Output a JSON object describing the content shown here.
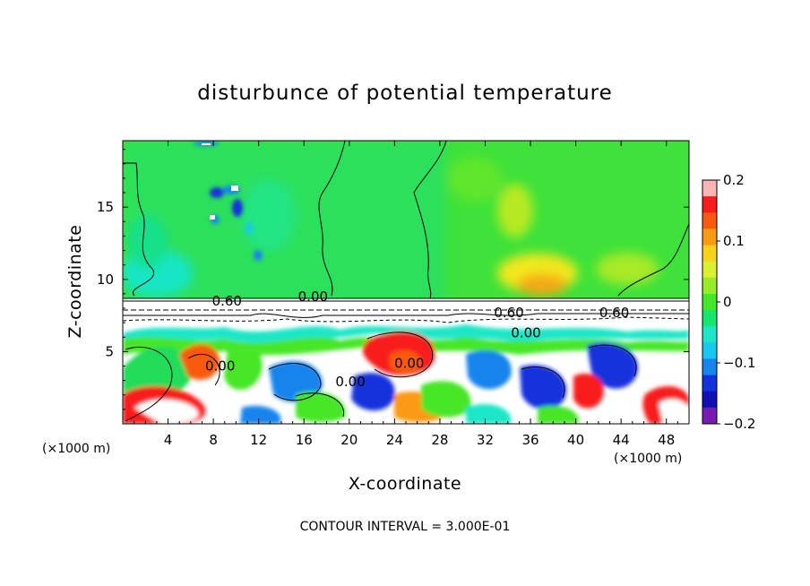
{
  "chart_data": {
    "type": "heatmap",
    "title": "disturbunce of potential temperature",
    "xlabel": "X-coordinate",
    "ylabel": "Z-coordinate",
    "x_unit": "(×1000 m)",
    "y_unit": "(×1000 m)",
    "xlim": [
      0,
      50
    ],
    "ylim": [
      0,
      19.6
    ],
    "x_ticks": [
      4,
      8,
      12,
      16,
      20,
      24,
      28,
      32,
      36,
      40,
      44,
      48
    ],
    "y_ticks": [
      5,
      10,
      15
    ],
    "colorbar": {
      "range": [
        -0.2,
        0.2
      ],
      "ticks": [
        0.2,
        0.1,
        0,
        -0.1,
        -0.2
      ],
      "tick_labels": [
        "0.2",
        "0.1",
        "0",
        "−0.1",
        "−0.2"
      ],
      "colors": [
        "#fcb4b4",
        "#f81c1c",
        "#fa5a10",
        "#fa9a14",
        "#f8d21a",
        "#dcf032",
        "#96ec28",
        "#46e628",
        "#14e66e",
        "#1ae6c8",
        "#18c8f0",
        "#1684ec",
        "#1432dc",
        "#1010b4",
        "#7a1ab4"
      ]
    },
    "contour_labels": [
      {
        "text": "0.60",
        "x": 9.2,
        "z": 8.5
      },
      {
        "text": "0.00",
        "x": 16.8,
        "z": 8.8
      },
      {
        "text": "0.60",
        "x": 34.1,
        "z": 7.7
      },
      {
        "text": "0.60",
        "x": 43.4,
        "z": 7.7
      },
      {
        "text": "0.00",
        "x": 35.6,
        "z": 6.3
      },
      {
        "text": "0.00",
        "x": 8.6,
        "z": 4.0
      },
      {
        "text": "0.00",
        "x": 25.3,
        "z": 4.2
      },
      {
        "text": "0.00",
        "x": 20.1,
        "z": 2.9
      }
    ],
    "contour_interval_note": "CONTOUR INTERVAL = 3.000E-01"
  }
}
